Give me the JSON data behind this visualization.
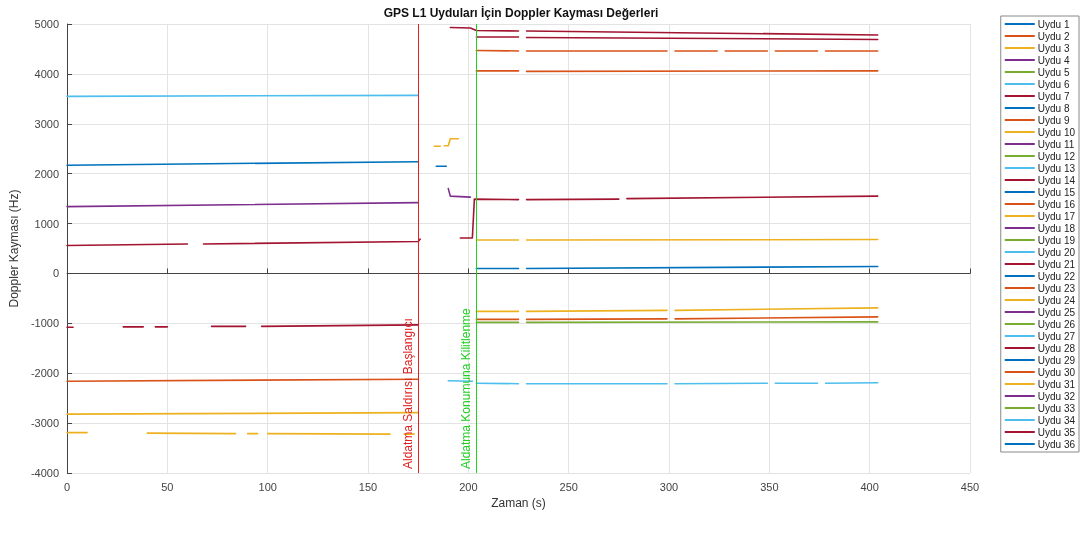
{
  "chart_data": {
    "type": "line",
    "title": "GPS L1 Uyduları İçin Doppler Kayması Değerleri",
    "xlabel": "Zaman (s)",
    "ylabel": "Doppler Kayması (Hz)",
    "xlim": [
      0,
      450
    ],
    "xticks": [
      0,
      50,
      100,
      150,
      200,
      250,
      300,
      350,
      400,
      450
    ],
    "ylim": [
      -4000,
      5000
    ],
    "yticks": [
      -4000,
      -3000,
      -2000,
      -1000,
      0,
      1000,
      2000,
      3000,
      4000,
      5000
    ],
    "grid": true,
    "legend": "right",
    "marker": "none",
    "line_style": "solid",
    "ref_lines": [
      {
        "axis": "x",
        "value": 175,
        "label": "Aldatma Saldırısı Başlangıcı",
        "color": "#e02020"
      },
      {
        "axis": "x",
        "value": 204,
        "label": "Aldatma Konumuna Kilitlenme",
        "color": "#20d020"
      }
    ],
    "series": [
      {
        "name": "Uydu 1",
        "color": "#0072bd",
        "x": [
          0,
          175
        ],
        "values": [
          2170,
          2240
        ]
      },
      {
        "name": "Uydu 2",
        "color": "#d95319",
        "x": [
          0,
          175
        ],
        "values": [
          -2160,
          -2120
        ]
      },
      {
        "name": "Uydu 3",
        "color": "#edb120",
        "x": [
          0,
          175
        ],
        "values": [
          -2820,
          -2790
        ]
      },
      {
        "name": "Uydu 4",
        "color": "#7e2f8e",
        "x": [
          0,
          175
        ],
        "values": [
          1340,
          1420
        ]
      },
      {
        "name": "Uydu 5",
        "color": "#77ac30",
        "x": [
          204,
          225,
          227,
          229,
          404
        ],
        "values": [
          -980,
          -980,
          null,
          -980,
          -970
        ]
      },
      {
        "name": "Uydu 6",
        "color": "#4dbeee",
        "x": [
          0,
          175
        ],
        "values": [
          3550,
          3570
        ]
      },
      {
        "name": "Uydu 7",
        "color": "#a2142f",
        "x": [
          0,
          60,
          64,
          68,
          175,
          176,
          186,
          196,
          202,
          203,
          225,
          227,
          229,
          275,
          277,
          279,
          404
        ],
        "values": [
          560,
          590,
          null,
          590,
          640,
          690,
          null,
          710,
          710,
          1490,
          1480,
          null,
          1480,
          1490,
          null,
          1500,
          1550
        ]
      },
      {
        "name": "Uydu 8",
        "color": "#0072bd",
        "x": [
          184,
          189
        ],
        "values": [
          2150,
          2150
        ]
      },
      {
        "name": "Uydu 9",
        "color": "#d95319",
        "x": [
          204,
          225,
          227,
          229,
          299,
          301,
          303,
          324,
          326,
          328,
          349,
          351,
          353,
          374,
          376,
          378,
          404
        ],
        "values": [
          4470,
          4460,
          null,
          4460,
          4460,
          null,
          4460,
          4460,
          null,
          4460,
          4460,
          null,
          4460,
          4460,
          null,
          4460,
          4460
        ]
      },
      {
        "name": "Uydu 10",
        "color": "#edb120",
        "x": [
          0,
          10,
          12,
          40,
          84,
          86,
          90,
          95,
          97,
          100,
          161,
          163,
          168,
          173
        ],
        "values": [
          -3190,
          -3190,
          null,
          -3200,
          -3210,
          null,
          -3210,
          -3210,
          null,
          -3210,
          -3220,
          null,
          -3220,
          -3220
        ]
      },
      {
        "name": "Uydu 11",
        "color": "#7e2f8e",
        "x": [
          190,
          191,
          201
        ],
        "values": [
          1700,
          1550,
          1530
        ]
      },
      {
        "name": "Uydu 12",
        "color": "#77ac30"
      },
      {
        "name": "Uydu 13",
        "color": "#4dbeee",
        "x": [
          190,
          202,
          203,
          204,
          225,
          227,
          229,
          299,
          301,
          303,
          349,
          351,
          353,
          374,
          376,
          378,
          404
        ],
        "values": [
          -2150,
          -2160,
          null,
          -2200,
          -2210,
          null,
          -2210,
          -2210,
          null,
          -2210,
          -2200,
          null,
          -2200,
          -2200,
          null,
          -2200,
          -2190
        ]
      },
      {
        "name": "Uydu 14",
        "color": "#a2142f",
        "x": [
          0,
          3,
          5,
          28,
          38,
          40,
          44,
          50,
          52,
          72,
          89,
          91,
          97,
          175
        ],
        "values": [
          -1080,
          -1080,
          null,
          -1070,
          -1070,
          null,
          -1070,
          -1070,
          null,
          -1060,
          -1060,
          null,
          -1060,
          -1030
        ]
      },
      {
        "name": "Uydu 15",
        "color": "#0072bd",
        "x": [
          204,
          225,
          227,
          229,
          404
        ],
        "values": [
          100,
          100,
          null,
          100,
          140
        ]
      },
      {
        "name": "Uydu 16",
        "color": "#d95319",
        "x": [
          204,
          225,
          227,
          229,
          404
        ],
        "values": [
          4060,
          4060,
          null,
          4050,
          4060
        ]
      },
      {
        "name": "Uydu 17",
        "color": "#edb120",
        "x": [
          183,
          186,
          187,
          188,
          190,
          191,
          195
        ],
        "values": [
          2550,
          2550,
          null,
          2560,
          2560,
          2700,
          2700
        ]
      },
      {
        "name": "Uydu 18",
        "color": "#7e2f8e"
      },
      {
        "name": "Uydu 19",
        "color": "#77ac30"
      },
      {
        "name": "Uydu 20",
        "color": "#4dbeee"
      },
      {
        "name": "Uydu 21",
        "color": "#a2142f",
        "x": [
          191,
          201,
          204,
          225,
          227,
          229,
          404
        ],
        "values": [
          4930,
          4920,
          4870,
          4860,
          null,
          4860,
          4780
        ]
      },
      {
        "name": "Uydu 22",
        "color": "#0072bd"
      },
      {
        "name": "Uydu 23",
        "color": "#d95319",
        "x": [
          204,
          225,
          227,
          229,
          299,
          301,
          303,
          404
        ],
        "values": [
          -920,
          -920,
          null,
          -920,
          -910,
          null,
          -910,
          -870
        ]
      },
      {
        "name": "Uydu 24",
        "color": "#edb120",
        "x": [
          204,
          225,
          227,
          229,
          404
        ],
        "values": [
          670,
          670,
          null,
          670,
          680
        ]
      },
      {
        "name": "Uydu 25",
        "color": "#7e2f8e"
      },
      {
        "name": "Uydu 26",
        "color": "#77ac30"
      },
      {
        "name": "Uydu 27",
        "color": "#4dbeee"
      },
      {
        "name": "Uydu 28",
        "color": "#a2142f",
        "x": [
          204,
          225,
          227,
          229,
          404
        ],
        "values": [
          4740,
          4740,
          null,
          4730,
          4690
        ]
      },
      {
        "name": "Uydu 29",
        "color": "#0072bd"
      },
      {
        "name": "Uydu 30",
        "color": "#d95319"
      },
      {
        "name": "Uydu 31",
        "color": "#edb120",
        "x": [
          204,
          225,
          227,
          229,
          299,
          301,
          303,
          404
        ],
        "values": [
          -760,
          -760,
          null,
          -760,
          -740,
          null,
          -740,
          -690
        ]
      },
      {
        "name": "Uydu 32",
        "color": "#7e2f8e"
      },
      {
        "name": "Uydu 33",
        "color": "#77ac30"
      },
      {
        "name": "Uydu 34",
        "color": "#4dbeee"
      },
      {
        "name": "Uydu 35",
        "color": "#a2142f"
      },
      {
        "name": "Uydu 36",
        "color": "#0072bd"
      }
    ]
  }
}
